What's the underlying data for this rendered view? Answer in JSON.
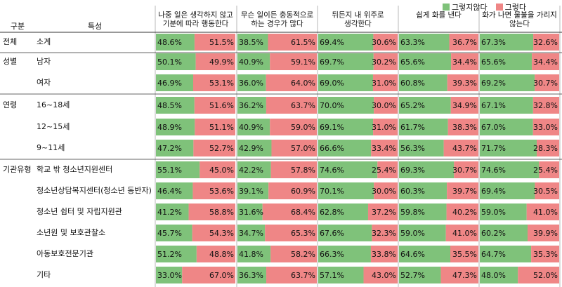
{
  "legend": {
    "no_label": "그렇지않다",
    "yes_label": "그렇다"
  },
  "colors": {
    "no": "#7fc27a",
    "yes": "#ef8686"
  },
  "header": {
    "group_col": "구분",
    "attr_col": "특성"
  },
  "chart_data": {
    "type": "bar",
    "stacked": true,
    "orientation": "horizontal",
    "xlim": [
      0,
      100
    ],
    "questions": [
      "나중 일은 생각하지 않고 기분에 따라 행동한다",
      "무슨 일이든 충동적으로 하는 경우가 많다",
      "뒤든지 내 위주로 생각한다",
      "쉽게 화를 낸다",
      "화가 나면 물불을 가리지 않는다"
    ],
    "series": [
      {
        "name": "그렇지않다",
        "key": "no"
      },
      {
        "name": "그렇다",
        "key": "yes"
      }
    ],
    "rows": [
      {
        "group": "전체",
        "label": "소계",
        "no": [
          "48.6%",
          "38.5%",
          "69.4%",
          "63.3%",
          "67.3%"
        ],
        "yes": [
          "51.5%",
          "61.5%",
          "30.6%",
          "36.7%",
          "32.6%"
        ]
      },
      {
        "group": "성별",
        "label": "남자",
        "no": [
          "50.1%",
          "40.9%",
          "69.7%",
          "65.6%",
          "65.6%"
        ],
        "yes": [
          "49.9%",
          "59.1%",
          "30.2%",
          "34.4%",
          "34.4%"
        ]
      },
      {
        "group": "",
        "label": "여자",
        "no": [
          "46.9%",
          "36.0%",
          "69.0%",
          "60.8%",
          "69.2%"
        ],
        "yes": [
          "53.1%",
          "64.0%",
          "31.0%",
          "39.3%",
          "30.7%"
        ]
      },
      {
        "group": "연령",
        "label": "16~18세",
        "no": [
          "48.5%",
          "36.2%",
          "70.0%",
          "65.2%",
          "67.1%"
        ],
        "yes": [
          "51.6%",
          "63.7%",
          "30.0%",
          "34.9%",
          "32.8%"
        ]
      },
      {
        "group": "",
        "label": "12~15세",
        "no": [
          "48.9%",
          "40.9%",
          "69.1%",
          "61.7%",
          "67.0%"
        ],
        "yes": [
          "51.1%",
          "59.0%",
          "31.0%",
          "38.3%",
          "33.0%"
        ]
      },
      {
        "group": "",
        "label": "9~11세",
        "no": [
          "47.2%",
          "42.9%",
          "66.6%",
          "56.3%",
          "71.7%"
        ],
        "yes": [
          "52.7%",
          "57.0%",
          "33.4%",
          "43.7%",
          "28.3%"
        ]
      },
      {
        "group": "기관유형",
        "label": "학교 밖 청소년지원센터",
        "no": [
          "55.1%",
          "42.2%",
          "74.6%",
          "69.3%",
          "74.6%"
        ],
        "yes": [
          "45.0%",
          "57.8%",
          "25.4%",
          "30.7%",
          "25.4%"
        ]
      },
      {
        "group": "",
        "label": "청소년상담복지센터(청소년 동반자)",
        "no": [
          "46.4%",
          "39.1%",
          "70.1%",
          "60.3%",
          "69.4%"
        ],
        "yes": [
          "53.6%",
          "60.9%",
          "30.0%",
          "39.7%",
          "30.5%"
        ]
      },
      {
        "group": "",
        "label": "청소년 쉼터 및 자립지원관",
        "no": [
          "41.2%",
          "31.6%",
          "62.8%",
          "59.8%",
          "59.0%"
        ],
        "yes": [
          "58.8%",
          "68.4%",
          "37.2%",
          "40.2%",
          "41.0%"
        ]
      },
      {
        "group": "",
        "label": "소년원 및 보호관찰소",
        "no": [
          "45.7%",
          "34.7%",
          "67.6%",
          "59.0%",
          "60.2%"
        ],
        "yes": [
          "54.3%",
          "65.3%",
          "32.3%",
          "41.0%",
          "39.9%"
        ]
      },
      {
        "group": "",
        "label": "아동보호전문기관",
        "no": [
          "51.2%",
          "41.8%",
          "66.3%",
          "64.6%",
          "64.7%"
        ],
        "yes": [
          "48.8%",
          "58.2%",
          "33.8%",
          "35.5%",
          "35.3%"
        ]
      },
      {
        "group": "",
        "label": "기타",
        "no": [
          "33.0%",
          "36.3%",
          "57.1%",
          "52.7%",
          "48.0%"
        ],
        "yes": [
          "67.0%",
          "63.7%",
          "43.0%",
          "47.3%",
          "52.0%"
        ]
      }
    ]
  }
}
